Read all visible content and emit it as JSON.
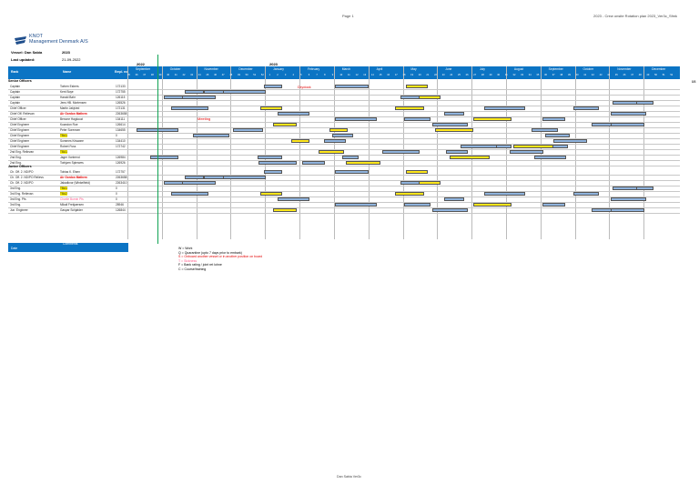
{
  "header": {
    "page_label": "Page 1",
    "doc_title": "2023 - Crew onsite Rotation plan 2023_Ver3c_Sfmk"
  },
  "company": {
    "line1": "KNOT",
    "line2": "Management Denmark A/S"
  },
  "vessel": {
    "label": "Vessel: Dan Sabia",
    "value": "2023"
  },
  "updated": {
    "label": "Last updated:",
    "value": "21-09-2022"
  },
  "years": [
    "2022",
    "2023"
  ],
  "table_header": {
    "rank": "Rank",
    "name": "Name",
    "emp": "Empl. no."
  },
  "months": [
    "September",
    "October",
    "November",
    "December",
    "January",
    "February",
    "March",
    "April",
    "May",
    "June",
    "July",
    "August",
    "September",
    "October",
    "November",
    "December"
  ],
  "weeks": [
    "35",
    "36",
    "37",
    "38",
    "39",
    "40",
    "41",
    "42",
    "43",
    "44",
    "45",
    "46",
    "47",
    "48",
    "49",
    "50",
    "51",
    "52",
    "1",
    "2",
    "3",
    "4",
    "5",
    "6",
    "7",
    "8",
    "9",
    "10",
    "11",
    "12",
    "13",
    "14",
    "15",
    "16",
    "17",
    "18",
    "19",
    "20",
    "21",
    "22",
    "23",
    "24",
    "25",
    "26",
    "27",
    "28",
    "29",
    "30",
    "31",
    "32",
    "33",
    "34",
    "35",
    "36",
    "37",
    "38",
    "39",
    "40",
    "41",
    "42",
    "43",
    "44",
    "45",
    "46",
    "47",
    "48",
    "49",
    "50",
    "51",
    "52"
  ],
  "week_ref": "8/8",
  "sections": {
    "senior": "Senior Officers",
    "junior": "Junior Officers"
  },
  "senior_rows": [
    {
      "rank": "Captain",
      "name": "Torben Esbers",
      "emp": "172133",
      "style": ""
    },
    {
      "rank": "Captain",
      "name": "Kent Boye",
      "emp": "172755",
      "style": ""
    },
    {
      "rank": "Captain",
      "name": "Harald Bahr",
      "emp": "126115",
      "style": ""
    },
    {
      "rank": "Captain",
      "name": "Jens HB. Mortensen",
      "emp": "126526",
      "style": ""
    },
    {
      "rank": "Chief Officer",
      "name": "Martin Jakjvied",
      "emp": "172131",
      "style": ""
    },
    {
      "rank": "Chief Off. Relievan",
      "name": "Air Gordon Mathem",
      "emp": "2263658",
      "style": "red"
    },
    {
      "rank": "Chief Officer",
      "name": "Benone Hagkouzi",
      "emp": "134111",
      "style": ""
    },
    {
      "rank": "Chief Engineer",
      "name": "Kuandon Rue",
      "emp": "126614",
      "style": ""
    },
    {
      "rank": "Chief Engineer",
      "name": "Peter Sorensen",
      "emp": "134655",
      "style": ""
    },
    {
      "rank": "Chief Engineer",
      "name": "TBA1",
      "emp": "0",
      "style": "hl"
    },
    {
      "rank": "Chief Engineer",
      "name": "Sommes Krisware",
      "emp": "134410",
      "style": ""
    },
    {
      "rank": "Chief Engineer",
      "name": "Robert Fuss",
      "emp": "172742",
      "style": ""
    },
    {
      "rank": "2nd Eng. Relievan",
      "name": "TBA1",
      "emp": "",
      "style": "hl"
    },
    {
      "rank": "2nd Eng.",
      "name": "Jager Vontrend",
      "emp": "126984",
      "style": ""
    },
    {
      "rank": "2nd Eng.",
      "name": "Torbjørn Spierwes",
      "emp": "126926",
      "style": ""
    }
  ],
  "junior_rows": [
    {
      "rank": "Ch. Off. 2. ND/PO",
      "name": "Tobias K. Elsen",
      "emp": "172757",
      "style": ""
    },
    {
      "rank": "Ch. Off. 2. ND/PO Relievs",
      "name": "Air Gordon Mathem",
      "emp": "2263658",
      "style": "red"
    },
    {
      "rank": "Ch. Off. 2. ND/PO",
      "name": "Jakadkvor (Winkelfield)",
      "emp": "2263410",
      "style": ""
    },
    {
      "rank": "3rd Eng.",
      "name": "TBA1",
      "emp": "0",
      "style": "hl"
    },
    {
      "rank": "3rd Eng. Relievan",
      "name": "TBA2",
      "emp": "0",
      "style": "hl"
    },
    {
      "rank": "3rd Eng. Pfs",
      "name": "Charlie Burnin Pfs",
      "emp": "0",
      "style": "pink"
    },
    {
      "rank": "3rd Eng.",
      "name": "Mikail Frekjaersen",
      "emp": "28946",
      "style": ""
    },
    {
      "rank": "Jun. Engineer",
      "name": "Gaspar Schjølder",
      "emp": "126844",
      "style": ""
    }
  ],
  "notices": [
    "Drydock",
    "Meeting"
  ],
  "footer_box": {
    "date_label": "Date",
    "comments_label": "Comments"
  },
  "legend": [
    "W = Work",
    "Q = Quarantine (upto 7 days prior to embark)",
    "S = Onboard another vessel or in another position on board",
    "T = Sickness",
    "F = Bank rating / joint ret lohne",
    "C = Course/training"
  ],
  "footer": "Dan Sabia Ver3c",
  "colors": {
    "header": "#0b74c4",
    "work_band": "#8fb3dd",
    "yellow": "#ffe71a",
    "red": "#e30000",
    "green_line": "#10a354"
  }
}
